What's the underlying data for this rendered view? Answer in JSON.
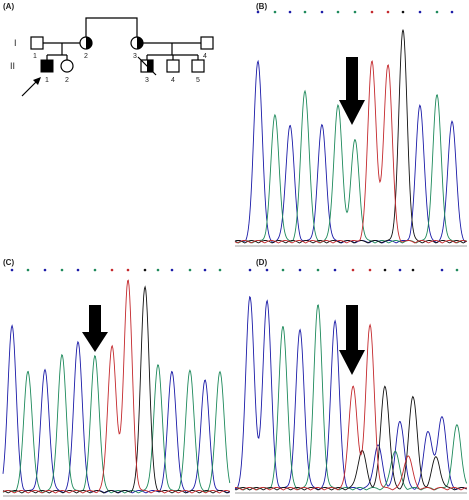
{
  "panels": [
    "(A)",
    "(B)",
    "(C)",
    "(D)"
  ],
  "pedigree": {
    "generations": [
      "I",
      "II"
    ],
    "gen1": [
      "1",
      "2",
      "3",
      "4"
    ],
    "gen2": [
      "1",
      "2",
      "3",
      "4",
      "5"
    ]
  }
}
